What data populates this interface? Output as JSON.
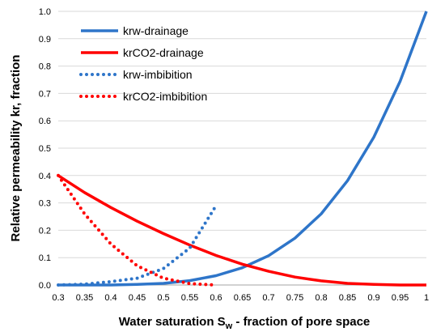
{
  "chart_data": {
    "type": "line",
    "xlabel": "Water saturation S",
    "xlabel_sub": "w",
    "xlabel_suffix": " - fraction of pore space",
    "ylabel": "Relative permeability kr, fraction",
    "xlim": [
      0.3,
      1.0
    ],
    "ylim": [
      0,
      1.0
    ],
    "xticks": [
      "0.3",
      "0.35",
      "0.4",
      "0.45",
      "0.5",
      "0.55",
      "0.6",
      "0.65",
      "0.7",
      "0.75",
      "0.8",
      "0.85",
      "0.9",
      "0.95",
      "1"
    ],
    "yticks": [
      "0.0",
      "0.1",
      "0.2",
      "0.3",
      "0.4",
      "0.5",
      "0.6",
      "0.7",
      "0.8",
      "0.9",
      "1.0"
    ],
    "grid": "horizontal",
    "legend_position": "top-left",
    "series": [
      {
        "name": "krw-drainage",
        "color": "#2E75C9",
        "style": "solid",
        "x": [
          0.3,
          0.35,
          0.4,
          0.45,
          0.5,
          0.55,
          0.6,
          0.65,
          0.7,
          0.75,
          0.8,
          0.85,
          0.9,
          0.95,
          1.0
        ],
        "y": [
          0.0,
          0.0,
          0.0,
          0.002,
          0.006,
          0.016,
          0.034,
          0.063,
          0.107,
          0.171,
          0.26,
          0.381,
          0.54,
          0.744,
          1.0
        ]
      },
      {
        "name": "krCO2-drainage",
        "color": "#FF0000",
        "style": "solid",
        "x": [
          0.3,
          0.35,
          0.4,
          0.45,
          0.5,
          0.55,
          0.6,
          0.65,
          0.7,
          0.75,
          0.8,
          0.85,
          0.9,
          0.95,
          1.0
        ],
        "y": [
          0.4,
          0.338,
          0.283,
          0.233,
          0.188,
          0.146,
          0.108,
          0.076,
          0.05,
          0.029,
          0.015,
          0.006,
          0.002,
          0.0,
          0.0
        ]
      },
      {
        "name": "krw-imbibition",
        "color": "#2E75C9",
        "style": "dotted",
        "x": [
          0.3,
          0.35,
          0.4,
          0.45,
          0.5,
          0.55,
          0.6
        ],
        "y": [
          0.0,
          0.003,
          0.012,
          0.025,
          0.06,
          0.135,
          0.29
        ]
      },
      {
        "name": "krCO2-imbibition",
        "color": "#FF0000",
        "style": "dotted",
        "x": [
          0.3,
          0.35,
          0.4,
          0.45,
          0.5,
          0.55,
          0.6
        ],
        "y": [
          0.4,
          0.26,
          0.15,
          0.07,
          0.025,
          0.005,
          0.0
        ]
      }
    ]
  }
}
